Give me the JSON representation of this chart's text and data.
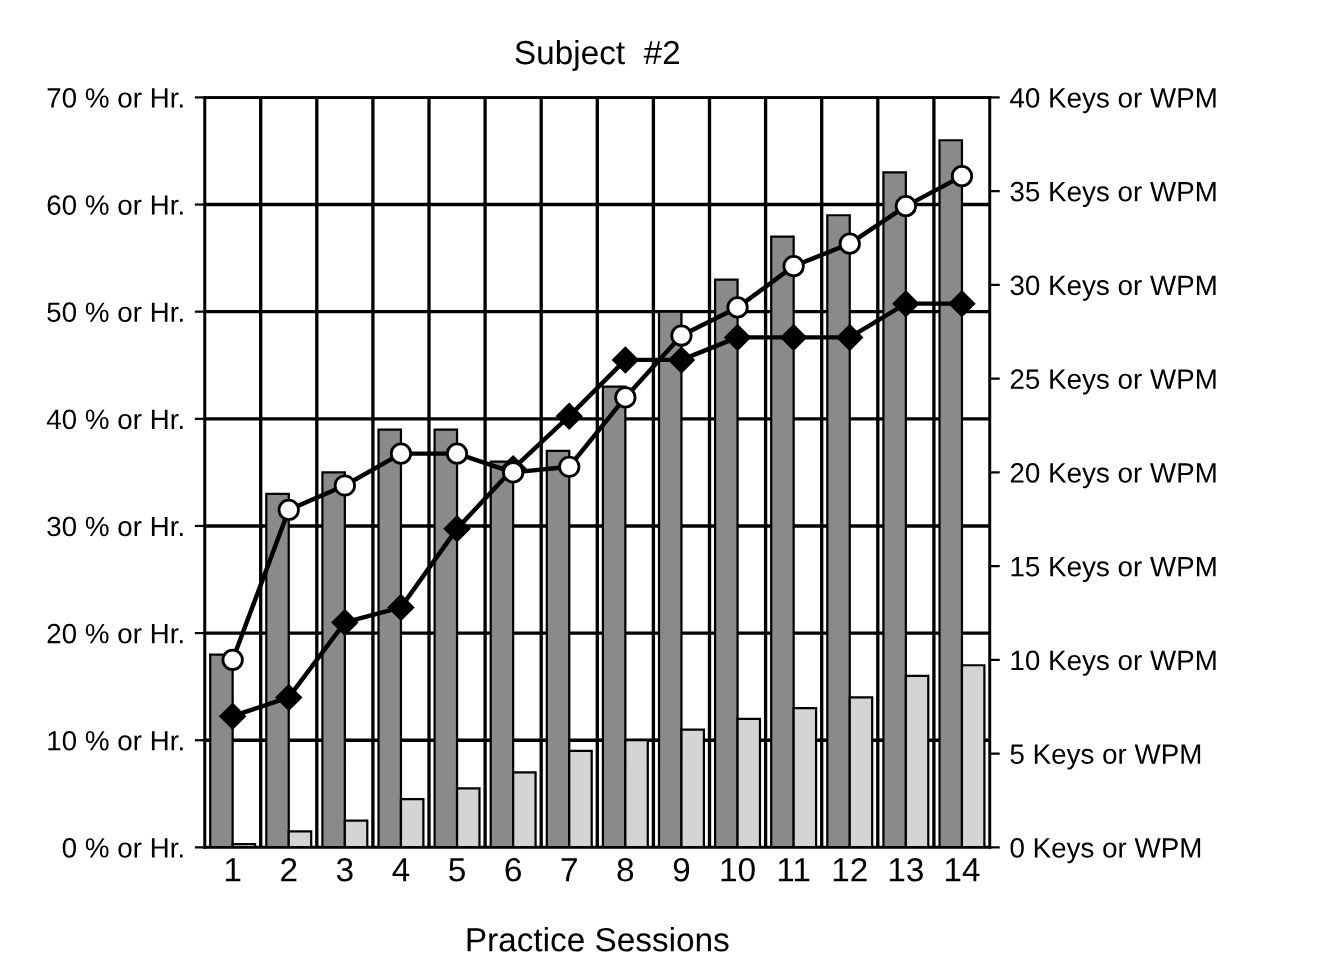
{
  "chart_data": {
    "type": "bar",
    "title": "Subject  #2",
    "xlabel": "Practice Sessions",
    "categories": [
      "1",
      "2",
      "3",
      "4",
      "5",
      "6",
      "7",
      "8",
      "9",
      "10",
      "11",
      "12",
      "13",
      "14"
    ],
    "series": [
      {
        "color": "#8a8a8a",
        "values": [
          18,
          33,
          35,
          39,
          39,
          36,
          37,
          43,
          50,
          53,
          57,
          59,
          63,
          66
        ]
      },
      {
        "color": "#d4d4d4",
        "values": [
          0.3,
          1.5,
          2.5,
          4.5,
          5.5,
          7,
          9,
          10,
          11,
          12,
          13,
          14,
          16,
          17
        ]
      },
      {
        "type": "line",
        "axis": "y2",
        "color": "#000000",
        "marker": "circle",
        "values": [
          10,
          18,
          19.3,
          21,
          21,
          20,
          20.3,
          24,
          27.3,
          28.8,
          31,
          32.2,
          34.2,
          35.8
        ]
      },
      {
        "type": "line",
        "axis": "y2",
        "color": "#000000",
        "marker": "diamond",
        "values": [
          7,
          8,
          12,
          12.8,
          17,
          20.2,
          23,
          26,
          26,
          27.2,
          27.2,
          27.2,
          29,
          29
        ]
      }
    ],
    "ylim": [
      0,
      70
    ],
    "yticks": [
      {
        "value": 0,
        "label": "0 % or Hr."
      },
      {
        "value": 10,
        "label": "10 % or Hr."
      },
      {
        "value": 20,
        "label": "20 % or Hr."
      },
      {
        "value": 30,
        "label": "30 % or Hr."
      },
      {
        "value": 40,
        "label": "40 % or Hr."
      },
      {
        "value": 50,
        "label": "50 % or Hr."
      },
      {
        "value": 60,
        "label": "60 % or Hr."
      },
      {
        "value": 70,
        "label": "70 % or Hr."
      }
    ],
    "y2lim": [
      0,
      40
    ],
    "y2ticks": [
      {
        "value": 0,
        "label": "0 Keys or WPM"
      },
      {
        "value": 5,
        "label": "5 Keys or WPM"
      },
      {
        "value": 10,
        "label": "10 Keys or WPM"
      },
      {
        "value": 15,
        "label": "15 Keys or WPM"
      },
      {
        "value": 20,
        "label": "20 Keys or WPM"
      },
      {
        "value": 25,
        "label": "25 Keys or WPM"
      },
      {
        "value": 30,
        "label": "30 Keys or WPM"
      },
      {
        "value": 35,
        "label": "35 Keys or WPM"
      },
      {
        "value": 40,
        "label": "40 Keys or WPM"
      }
    ],
    "grid": true,
    "legend": false
  }
}
